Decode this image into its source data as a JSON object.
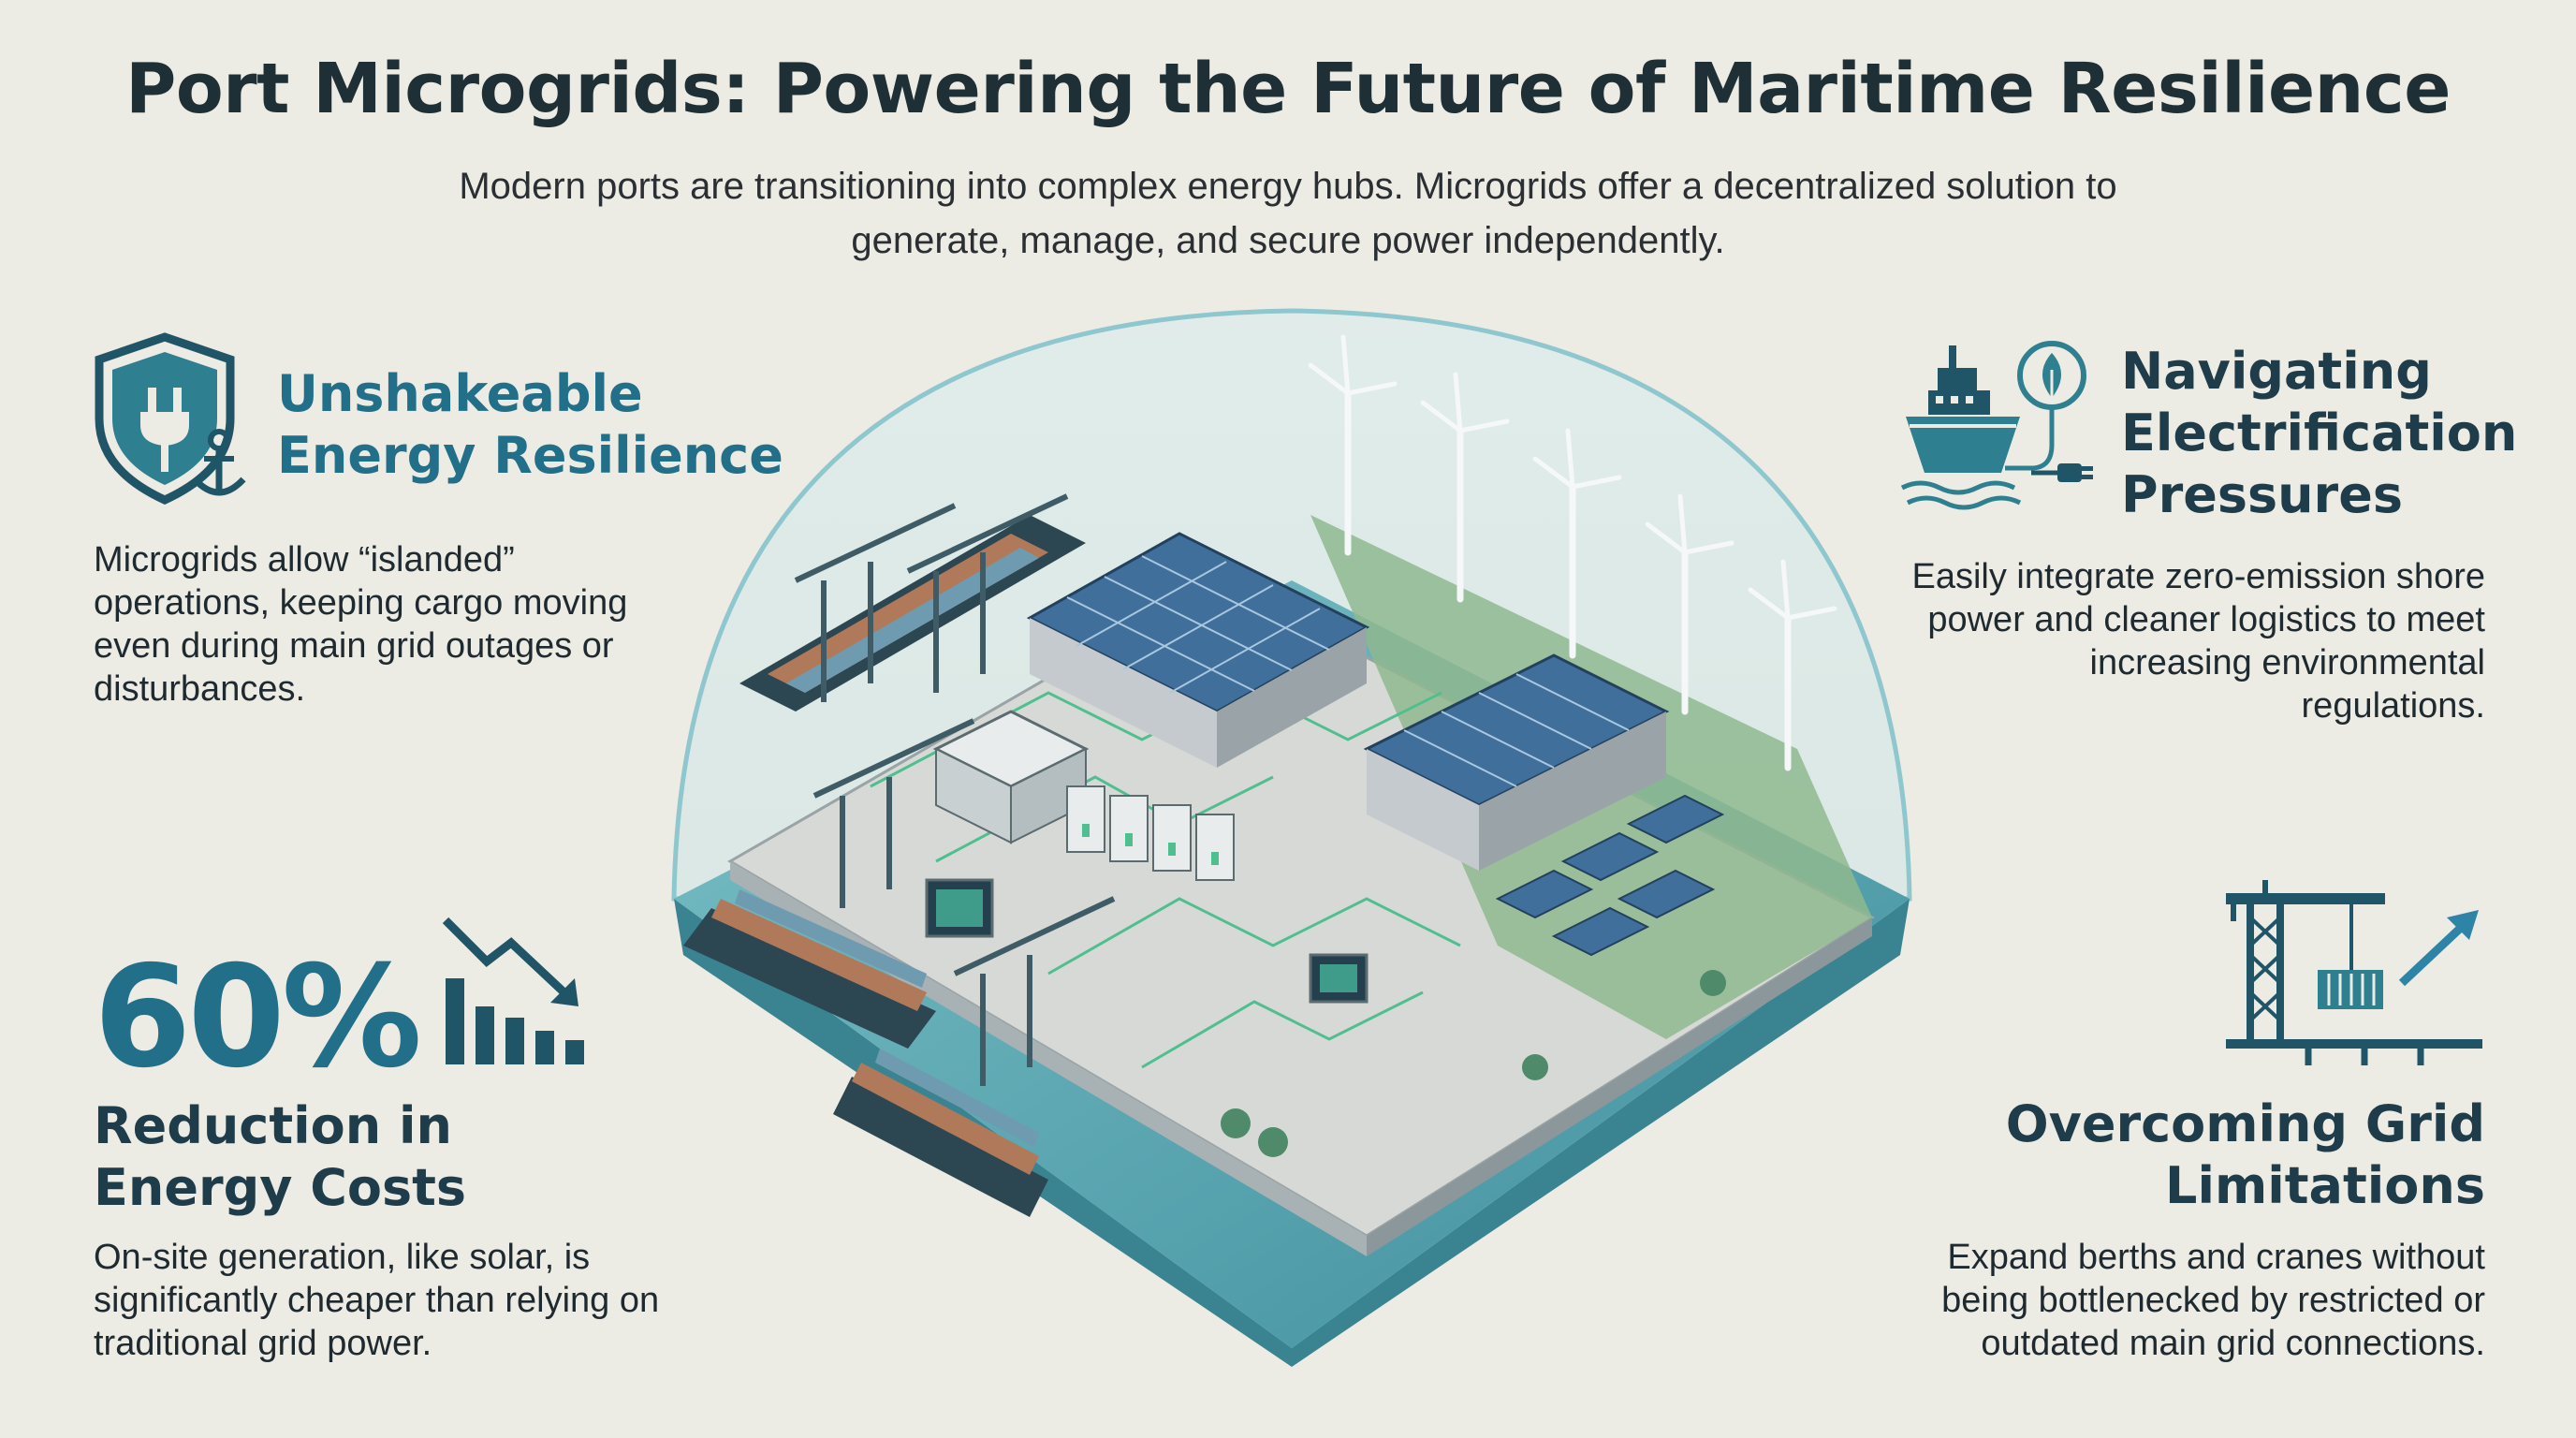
{
  "title": "Port Microgrids: Powering the Future of Maritime Resilience",
  "subtitle": "Modern ports are transitioning into complex energy hubs. Microgrids offer a decentralized solution to generate, manage, and secure power independently.",
  "features": {
    "resilience": {
      "heading_line1": "Unshakeable",
      "heading_line2": "Energy Resilience",
      "body": "Microgrids allow “islanded” operations, keeping cargo moving even during main grid outages or disturbances.",
      "icon": "shield-plug-anchor-icon"
    },
    "electrification": {
      "heading_line1": "Navigating",
      "heading_line2": "Electrification",
      "heading_line3": "Pressures",
      "body": "Easily integrate zero-emission shore power and cleaner logistics to meet increasing environmental regulations.",
      "icon": "ship-leaf-plug-icon"
    },
    "costs": {
      "stat": "60%",
      "heading_line1": "Reduction in",
      "heading_line2": "Energy Costs",
      "body": "On-site generation, like solar, is significantly cheaper than relying on traditional grid power.",
      "icon": "declining-bar-chart-icon"
    },
    "grid": {
      "heading_line1": "Overcoming Grid",
      "heading_line2": "Limitations",
      "body": "Expand berths and cranes without being bottlenecked by restricted or outdated main grid connections.",
      "icon": "crane-growth-arrow-icon"
    }
  },
  "colors": {
    "background": "#ecebe4",
    "accent": "#226f8a",
    "heading_dark": "#1f3c4a",
    "solar_panel": "#3f6f9a",
    "water": "#5fa9b5",
    "circuit": "#4fbf8f"
  },
  "illustration": "port-microgrid-dome-illustration"
}
